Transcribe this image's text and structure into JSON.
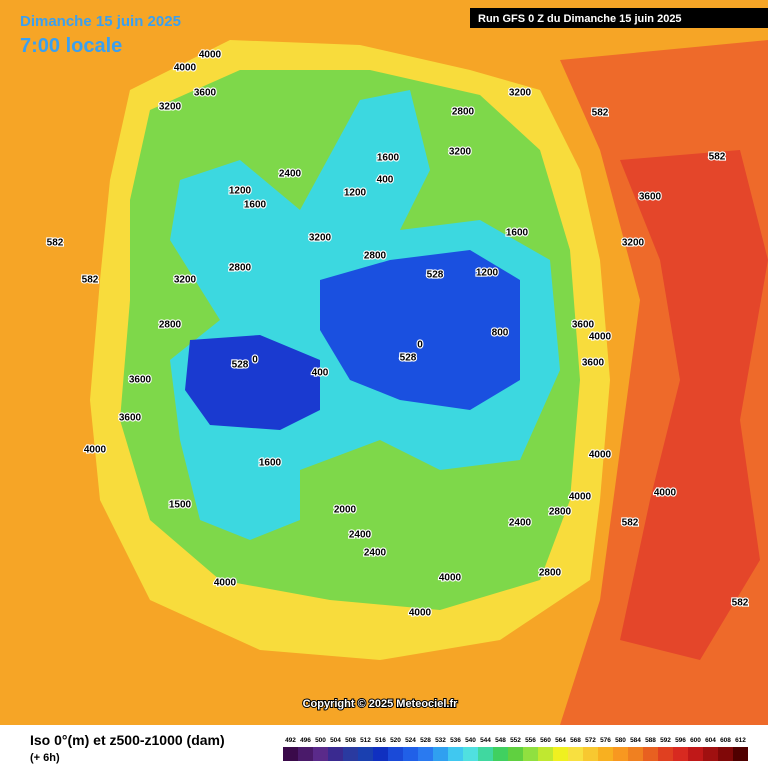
{
  "header": {
    "date": "Dimanche 15 juin 2025",
    "time": "7:00 locale",
    "run": "Run GFS 0 Z du Dimanche 15 juin 2025"
  },
  "copyright": "Copyright © 2025 Meteociel.fr",
  "footer": {
    "title": "Iso 0°(m) et z500-z1000 (dam)",
    "lead": "(+ 6h)"
  },
  "scale": {
    "values": [
      492,
      496,
      500,
      504,
      508,
      512,
      516,
      520,
      524,
      528,
      532,
      536,
      540,
      544,
      548,
      552,
      556,
      560,
      564,
      568,
      572,
      576,
      580,
      584,
      588,
      592,
      596,
      600,
      604,
      608,
      612
    ],
    "colors": [
      "#3a0a4a",
      "#4a1a6a",
      "#5a2a8a",
      "#3a2a90",
      "#2a3aa0",
      "#1a40b0",
      "#1030c0",
      "#1a4ad8",
      "#2060e8",
      "#2a7af0",
      "#30a0f0",
      "#40c8f0",
      "#50e0e0",
      "#40d8a0",
      "#40d060",
      "#60d040",
      "#90e040",
      "#c0e830",
      "#f0f020",
      "#f8e040",
      "#f8c830",
      "#f8b020",
      "#f89820",
      "#f08020",
      "#e86020",
      "#e04020",
      "#d82a20",
      "#c01818",
      "#a01010",
      "#800808",
      "#500000"
    ]
  },
  "map": {
    "labels": [
      "4000",
      "4000",
      "3600",
      "3200",
      "1200",
      "1600",
      "2400",
      "2800",
      "3200",
      "2800",
      "3600",
      "3600",
      "4000",
      "1600",
      "1500",
      "2000",
      "2400",
      "2400",
      "4000",
      "4000",
      "2800",
      "2400",
      "2800",
      "4000",
      "4000",
      "3600",
      "4000",
      "3600",
      "800",
      "1200",
      "1600",
      "2800",
      "3200",
      "2800",
      "3200",
      "3200",
      "1600",
      "400",
      "1200",
      "582",
      "582",
      "582",
      "582",
      "582",
      "582",
      "528",
      "528",
      "528",
      "0",
      "0",
      "400",
      "4000",
      "3600",
      "3200",
      "4000"
    ]
  }
}
